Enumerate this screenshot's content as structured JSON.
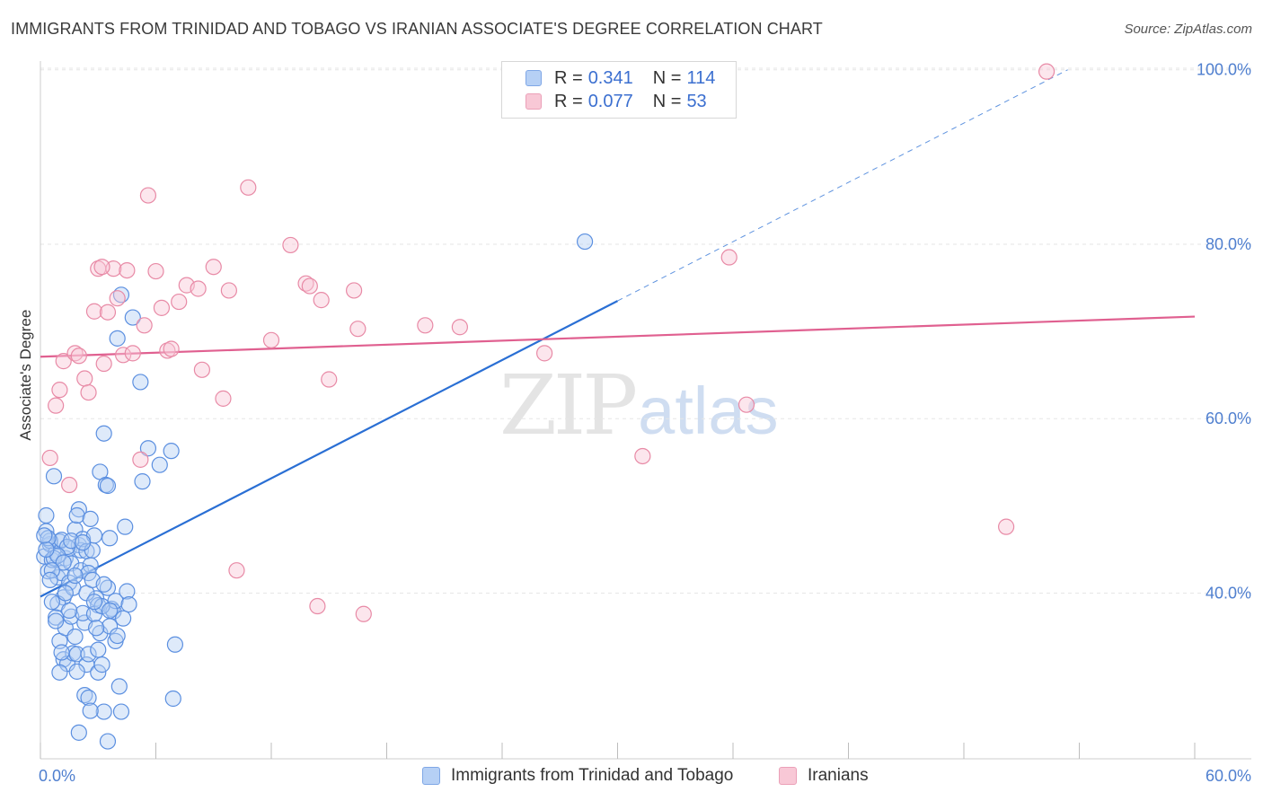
{
  "header": {
    "title": "IMMIGRANTS FROM TRINIDAD AND TOBAGO VS IRANIAN ASSOCIATE'S DEGREE CORRELATION CHART",
    "source": "Source: ZipAtlas.com"
  },
  "watermark": {
    "zip": "ZIP",
    "atlas": "atlas"
  },
  "legend": {
    "rows": [
      {
        "r_label": "R =",
        "r_value": "0.341",
        "n_label": "N =",
        "n_value": "114"
      },
      {
        "r_label": "R =",
        "r_value": "0.077",
        "n_label": "N =",
        "n_value": "53"
      }
    ]
  },
  "colors": {
    "blue_fill": "#b6d0f5",
    "blue_stroke": "#5b8fe0",
    "blue_line": "#2a6fd4",
    "pink_fill": "#f8c8d6",
    "pink_stroke": "#e88aa6",
    "pink_line": "#e06090",
    "grid": "#e6e6e6",
    "tick_text": "#4f7fcf"
  },
  "chart_data": {
    "type": "scatter",
    "title": "IMMIGRANTS FROM TRINIDAD AND TOBAGO VS IRANIAN ASSOCIATE'S DEGREE CORRELATION CHART",
    "xlabel": "",
    "ylabel": "Associate's Degree",
    "xlim": [
      0,
      60
    ],
    "ylim": [
      21,
      101
    ],
    "x_tick_labels": [
      "0.0%",
      "60.0%"
    ],
    "y_ticks": [
      40,
      60,
      80,
      100
    ],
    "y_tick_labels": [
      "40.0%",
      "60.0%",
      "80.0%",
      "100.0%"
    ],
    "grid": true,
    "legend_position": "bottom",
    "series": [
      {
        "name": "Immigrants from Trinidad and Tobago",
        "color": "#5b8fe0",
        "r": 0.341,
        "n": 114,
        "trend": {
          "x": [
            0,
            30
          ],
          "y": [
            39.6,
            73.5
          ]
        },
        "trend_extension": {
          "x": [
            30,
            53.4
          ],
          "y": [
            73.5,
            100
          ]
        },
        "points": [
          [
            0.2,
            44.2
          ],
          [
            0.3,
            47.1
          ],
          [
            0.4,
            42.5
          ],
          [
            0.5,
            45.6
          ],
          [
            0.3,
            48.9
          ],
          [
            0.6,
            43.8
          ],
          [
            0.8,
            44.6
          ],
          [
            0.7,
            53.4
          ],
          [
            0.9,
            41.8
          ],
          [
            1.0,
            45.9
          ],
          [
            1.1,
            42.3
          ],
          [
            1.2,
            39.5
          ],
          [
            0.9,
            38.8
          ],
          [
            0.8,
            37.2
          ],
          [
            1.0,
            34.5
          ],
          [
            1.3,
            36.0
          ],
          [
            1.2,
            32.4
          ],
          [
            1.4,
            31.9
          ],
          [
            1.3,
            44.0
          ],
          [
            1.5,
            45.1
          ],
          [
            1.6,
            43.4
          ],
          [
            1.5,
            41.2
          ],
          [
            1.7,
            40.6
          ],
          [
            1.6,
            37.3
          ],
          [
            1.8,
            35.0
          ],
          [
            1.7,
            33.1
          ],
          [
            1.9,
            33.0
          ],
          [
            1.8,
            47.3
          ],
          [
            2.0,
            45.5
          ],
          [
            2.1,
            44.9
          ],
          [
            2.0,
            49.6
          ],
          [
            1.9,
            48.9
          ],
          [
            2.2,
            46.2
          ],
          [
            2.1,
            42.6
          ],
          [
            2.3,
            36.6
          ],
          [
            2.2,
            37.7
          ],
          [
            2.4,
            31.8
          ],
          [
            2.3,
            28.3
          ],
          [
            2.5,
            28.0
          ],
          [
            2.4,
            44.8
          ],
          [
            2.6,
            43.2
          ],
          [
            2.5,
            42.3
          ],
          [
            2.7,
            44.9
          ],
          [
            2.8,
            46.6
          ],
          [
            2.6,
            48.5
          ],
          [
            2.9,
            39.4
          ],
          [
            3.0,
            38.6
          ],
          [
            2.8,
            37.6
          ],
          [
            3.1,
            35.4
          ],
          [
            3.0,
            30.9
          ],
          [
            3.2,
            31.8
          ],
          [
            3.3,
            26.4
          ],
          [
            3.1,
            53.9
          ],
          [
            3.4,
            52.4
          ],
          [
            3.5,
            52.3
          ],
          [
            3.3,
            58.3
          ],
          [
            3.6,
            46.3
          ],
          [
            3.5,
            40.6
          ],
          [
            3.7,
            38.2
          ],
          [
            3.8,
            37.9
          ],
          [
            3.6,
            36.2
          ],
          [
            3.9,
            34.5
          ],
          [
            4.0,
            35.1
          ],
          [
            4.1,
            29.3
          ],
          [
            4.2,
            26.4
          ],
          [
            3.9,
            39.1
          ],
          [
            4.3,
            37.1
          ],
          [
            4.4,
            47.6
          ],
          [
            4.5,
            40.2
          ],
          [
            4.0,
            69.2
          ],
          [
            4.2,
            74.2
          ],
          [
            4.8,
            71.6
          ],
          [
            5.2,
            64.2
          ],
          [
            5.3,
            52.8
          ],
          [
            5.6,
            56.6
          ],
          [
            6.2,
            54.7
          ],
          [
            6.8,
            56.3
          ],
          [
            6.9,
            27.9
          ],
          [
            7.0,
            34.1
          ],
          [
            0.5,
            46.0
          ],
          [
            0.7,
            44.0
          ],
          [
            1.1,
            46.1
          ],
          [
            1.4,
            45.3
          ],
          [
            0.6,
            39.0
          ],
          [
            1.0,
            30.9
          ],
          [
            1.5,
            38.0
          ],
          [
            2.0,
            24.0
          ],
          [
            3.5,
            23.0
          ],
          [
            2.6,
            26.5
          ],
          [
            0.4,
            46.3
          ],
          [
            0.9,
            44.3
          ],
          [
            1.2,
            43.5
          ],
          [
            1.8,
            42.0
          ],
          [
            2.4,
            40.0
          ],
          [
            2.9,
            36.0
          ],
          [
            3.2,
            38.5
          ],
          [
            3.6,
            38.0
          ],
          [
            0.3,
            45.0
          ],
          [
            0.6,
            42.6
          ],
          [
            1.6,
            46.0
          ],
          [
            2.2,
            45.8
          ],
          [
            2.7,
            41.5
          ],
          [
            3.3,
            41.0
          ],
          [
            1.3,
            40.0
          ],
          [
            0.8,
            36.8
          ],
          [
            1.9,
            31.0
          ],
          [
            2.5,
            33.0
          ],
          [
            3.0,
            33.5
          ],
          [
            4.6,
            38.7
          ],
          [
            2.8,
            39.0
          ],
          [
            1.1,
            33.2
          ],
          [
            0.2,
            46.6
          ],
          [
            0.5,
            41.5
          ],
          [
            28.3,
            80.3
          ]
        ]
      },
      {
        "name": "Iranians",
        "color": "#e88aa6",
        "r": 0.077,
        "n": 53,
        "trend": {
          "x": [
            0,
            60
          ],
          "y": [
            67.1,
            71.7
          ]
        },
        "points": [
          [
            0.5,
            55.5
          ],
          [
            0.8,
            61.5
          ],
          [
            1.0,
            63.3
          ],
          [
            1.2,
            66.6
          ],
          [
            1.5,
            52.4
          ],
          [
            1.8,
            67.5
          ],
          [
            2.0,
            67.2
          ],
          [
            2.3,
            64.6
          ],
          [
            2.5,
            63.0
          ],
          [
            2.8,
            72.3
          ],
          [
            3.0,
            77.2
          ],
          [
            3.3,
            66.3
          ],
          [
            3.5,
            72.2
          ],
          [
            3.8,
            77.2
          ],
          [
            4.0,
            73.8
          ],
          [
            4.3,
            67.3
          ],
          [
            4.5,
            77.0
          ],
          [
            4.8,
            67.5
          ],
          [
            5.2,
            55.3
          ],
          [
            5.4,
            70.7
          ],
          [
            5.6,
            85.6
          ],
          [
            6.0,
            76.9
          ],
          [
            6.3,
            72.7
          ],
          [
            6.6,
            67.8
          ],
          [
            6.8,
            68.0
          ],
          [
            7.2,
            73.4
          ],
          [
            7.6,
            75.3
          ],
          [
            8.2,
            74.9
          ],
          [
            8.4,
            65.6
          ],
          [
            9.0,
            77.4
          ],
          [
            9.5,
            62.3
          ],
          [
            9.8,
            74.7
          ],
          [
            10.2,
            42.6
          ],
          [
            10.8,
            86.5
          ],
          [
            12.0,
            69.0
          ],
          [
            13.0,
            79.9
          ],
          [
            13.8,
            75.5
          ],
          [
            14.0,
            75.2
          ],
          [
            14.4,
            38.5
          ],
          [
            14.6,
            73.6
          ],
          [
            15.0,
            64.5
          ],
          [
            16.3,
            74.7
          ],
          [
            16.5,
            70.3
          ],
          [
            16.8,
            37.6
          ],
          [
            20.0,
            70.7
          ],
          [
            21.8,
            70.5
          ],
          [
            26.2,
            67.5
          ],
          [
            31.3,
            55.7
          ],
          [
            35.8,
            78.5
          ],
          [
            36.7,
            61.6
          ],
          [
            50.2,
            47.6
          ],
          [
            52.3,
            99.8
          ],
          [
            3.2,
            77.4
          ]
        ]
      }
    ]
  }
}
